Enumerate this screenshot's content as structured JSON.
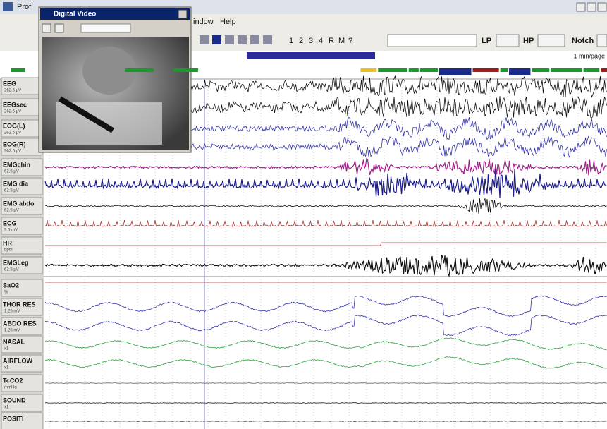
{
  "window": {
    "title": "Prof",
    "menu": [
      "indow",
      "Help"
    ],
    "toolbar": {
      "montage": [
        "1",
        "2",
        "3",
        "4",
        "R",
        "M",
        "?"
      ],
      "lp": "LP",
      "hp": "HP",
      "notch": "Notch"
    },
    "page_length": "1 min/page"
  },
  "video": {
    "title": "Digital Video"
  },
  "channels": [
    {
      "label": "EEG",
      "scale": "262.5 µV"
    },
    {
      "label": "EEGsec",
      "scale": "262.5 µV"
    },
    {
      "label": "EOG(L)",
      "scale": "262.5 µV"
    },
    {
      "label": "EOG(R)",
      "scale": "262.5 µV"
    },
    {
      "label": "EMGchin",
      "scale": "62.5 µV"
    },
    {
      "label": "EMG dia",
      "scale": "62.5 µV"
    },
    {
      "label": "EMG abdo",
      "scale": "62.5 µV"
    },
    {
      "label": "ECG",
      "scale": "2.5 mV"
    },
    {
      "label": "HR",
      "scale": "bpm"
    },
    {
      "label": "EMGLeg",
      "scale": "62.5 µV"
    },
    {
      "label": "SaO2",
      "scale": "%"
    },
    {
      "label": "THOR RES",
      "scale": "1.25 mV"
    },
    {
      "label": "ABDO RES",
      "scale": "1.25 mV"
    },
    {
      "label": "NASAL",
      "scale": "x1"
    },
    {
      "label": "AIRFLOW",
      "scale": "x1"
    },
    {
      "label": "TcCO2",
      "scale": "mmHg"
    },
    {
      "label": "SOUND",
      "scale": "x1"
    },
    {
      "label": "POSITI",
      "scale": ""
    }
  ]
}
